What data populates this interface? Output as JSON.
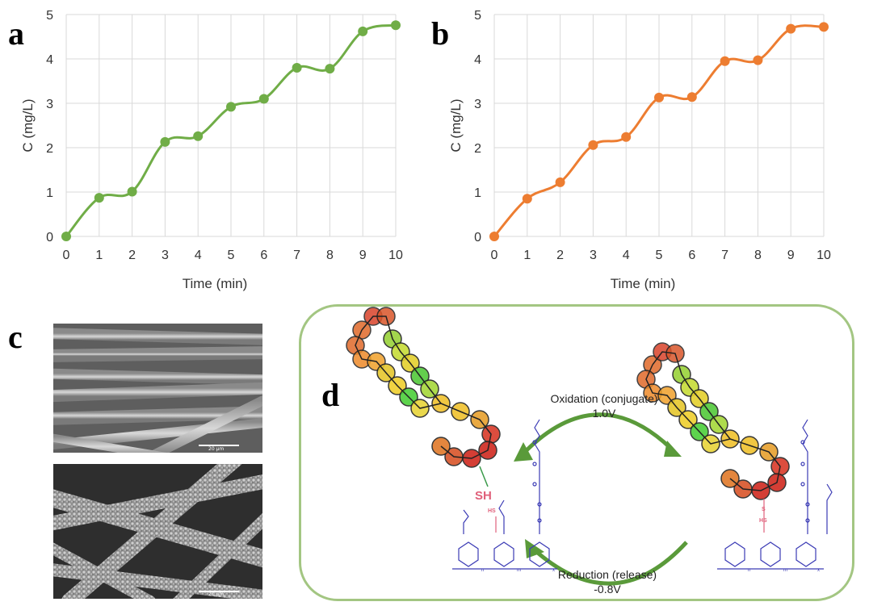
{
  "panel_labels": {
    "a": "a",
    "b": "b",
    "c": "c",
    "d": "d"
  },
  "chart_data": [
    {
      "type": "line",
      "xlabel": "Time (min)",
      "ylabel": "C (mg/L)",
      "xlim": [
        0,
        10
      ],
      "ylim": [
        0,
        5
      ],
      "x_ticks": [
        "0",
        "1",
        "2",
        "3",
        "4",
        "5",
        "6",
        "7",
        "8",
        "9",
        "10"
      ],
      "y_ticks": [
        "0",
        "1",
        "2",
        "3",
        "4",
        "5"
      ],
      "grid": true,
      "color": "#70ad47",
      "x": [
        0,
        1,
        2,
        3,
        4,
        5,
        6,
        7,
        8,
        9,
        10
      ],
      "values": [
        0,
        0.87,
        1.01,
        2.13,
        2.26,
        2.92,
        3.1,
        3.8,
        3.78,
        4.62,
        4.76
      ]
    },
    {
      "type": "line",
      "xlabel": "Time (min)",
      "ylabel": "C (mg/L)",
      "xlim": [
        0,
        10
      ],
      "ylim": [
        0,
        5
      ],
      "x_ticks": [
        "0",
        "1",
        "2",
        "3",
        "4",
        "5",
        "6",
        "7",
        "8",
        "9",
        "10"
      ],
      "y_ticks": [
        "0",
        "1",
        "2",
        "3",
        "4",
        "5"
      ],
      "grid": true,
      "color": "#ed7d31",
      "x": [
        0,
        1,
        2,
        3,
        4,
        5,
        6,
        7,
        8,
        9,
        10
      ],
      "values": [
        0,
        0.85,
        1.22,
        2.06,
        2.24,
        3.13,
        3.14,
        3.95,
        3.97,
        4.68,
        4.72
      ]
    }
  ],
  "sem": {
    "top_scale": "20 μm",
    "bottom_scale": "20 μm"
  },
  "diagram": {
    "oxidation_label": "Oxidation (conjugate)",
    "oxidation_voltage": "1.0V",
    "reduction_label": "Reduction (release)",
    "reduction_voltage": "-0.8V",
    "thiol_label": "SH",
    "polymer_labels": {
      "hs": "HS",
      "s": "S",
      "n": "n",
      "m": "m",
      "x": "x"
    },
    "colors": {
      "border": "#a3c682",
      "arrow": "#5a9a3a",
      "polymer": "#3b3bb5",
      "thiol": "#e0607a"
    }
  }
}
